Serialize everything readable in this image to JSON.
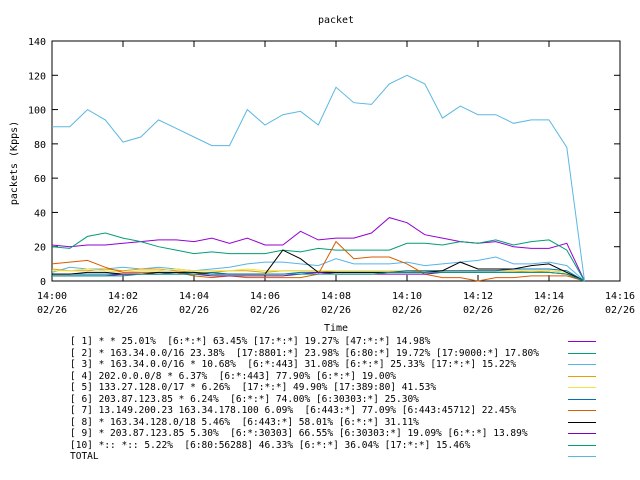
{
  "chart_data": {
    "type": "line",
    "title": "packet",
    "xlabel": "Time",
    "ylabel": "packets (Kpps)",
    "ylim": [
      0,
      140
    ],
    "yticks": [
      "0",
      "20",
      "40",
      "60",
      "80",
      "100",
      "120",
      "140"
    ],
    "xlim": [
      "14:00",
      "14:16"
    ],
    "xticks": [
      {
        "time": "14:00",
        "date": "02/26"
      },
      {
        "time": "14:02",
        "date": "02/26"
      },
      {
        "time": "14:04",
        "date": "02/26"
      },
      {
        "time": "14:06",
        "date": "02/26"
      },
      {
        "time": "14:08",
        "date": "02/26"
      },
      {
        "time": "14:10",
        "date": "02/26"
      },
      {
        "time": "14:12",
        "date": "02/26"
      },
      {
        "time": "14:14",
        "date": "02/26"
      },
      {
        "time": "14:16",
        "date": "02/26"
      }
    ],
    "x": [
      "14:00:00",
      "14:00:30",
      "14:01:00",
      "14:01:30",
      "14:02:00",
      "14:02:30",
      "14:03:00",
      "14:03:30",
      "14:04:00",
      "14:04:30",
      "14:05:00",
      "14:05:30",
      "14:06:00",
      "14:06:30",
      "14:07:00",
      "14:07:30",
      "14:08:00",
      "14:08:30",
      "14:09:00",
      "14:09:30",
      "14:10:00",
      "14:10:30",
      "14:11:00",
      "14:11:30",
      "14:12:00",
      "14:12:30",
      "14:13:00",
      "14:13:30",
      "14:14:00",
      "14:14:30",
      "14:15:00"
    ],
    "grid": false,
    "legend_position": "bottom",
    "series": [
      {
        "name": "[ 1] * * 25.01%  [6:*:*] 63.45% [17:*:*] 19.27% [47:*:*] 14.98%",
        "color": "#9400d3",
        "values": [
          21,
          20,
          21,
          21,
          22,
          23,
          24,
          24,
          23,
          25,
          22,
          25,
          21,
          21,
          29,
          24,
          25,
          25,
          28,
          37,
          34,
          27,
          25,
          23,
          22,
          23,
          20,
          19,
          19,
          22,
          0
        ]
      },
      {
        "name": "[ 2] * 163.34.0.0/16 23.38%  [17:8801:*] 23.98% [6:80:*] 19.72% [17:9000:*] 17.80%",
        "color": "#009e73",
        "values": [
          20,
          19,
          26,
          28,
          25,
          23,
          20,
          18,
          16,
          17,
          16,
          16,
          16,
          18,
          17,
          19,
          18,
          18,
          18,
          18,
          22,
          22,
          21,
          23,
          22,
          24,
          21,
          23,
          24,
          18,
          0
        ]
      },
      {
        "name": "[ 3] * 163.34.0.0/16 * 10.68%  [6:*:443] 31.08% [6:*:*] 25.33% [17:*:*] 15.22%",
        "color": "#56b4e9",
        "values": [
          5,
          8,
          7,
          7,
          8,
          7,
          8,
          7,
          6,
          7,
          8,
          10,
          11,
          11,
          10,
          9,
          13,
          10,
          10,
          10,
          11,
          9,
          10,
          11,
          12,
          14,
          10,
          10,
          11,
          9,
          0
        ]
      },
      {
        "name": "[ 4] 202.0.0.0/8 * 6.37%  [6:*:443] 77.90% [6:*:*] 19.00%",
        "color": "#e69f00",
        "values": [
          7,
          6,
          6,
          7,
          6,
          7,
          7,
          6,
          5,
          5,
          6,
          6,
          5,
          6,
          6,
          6,
          5,
          5,
          5,
          5,
          6,
          5,
          6,
          6,
          6,
          6,
          6,
          5,
          6,
          5,
          0
        ]
      },
      {
        "name": "[ 5] 133.27.128.0/17 * 6.26%  [17:*:*] 49.90% [17:389:80] 41.53%",
        "color": "#f0e442",
        "values": [
          6,
          6,
          7,
          6,
          5,
          6,
          6,
          7,
          6,
          6,
          6,
          7,
          6,
          6,
          6,
          6,
          6,
          6,
          6,
          6,
          6,
          6,
          6,
          6,
          6,
          6,
          6,
          6,
          6,
          5,
          0
        ]
      },
      {
        "name": "[ 6] 203.87.123.85 * 6.24%  [6:*:*] 74.00% [6:30303:*] 25.30%",
        "color": "#0072b2",
        "values": [
          4,
          4,
          4,
          4,
          4,
          4,
          4,
          5,
          4,
          5,
          4,
          4,
          4,
          4,
          5,
          5,
          5,
          5,
          5,
          5,
          6,
          6,
          6,
          6,
          6,
          6,
          7,
          7,
          7,
          6,
          0
        ]
      },
      {
        "name": "[ 7] 13.149.200.23 163.34.178.100 6.09%  [6:443:*] 77.09% [6:443:45712] 22.45%",
        "color": "#d55e00",
        "values": [
          10,
          11,
          12,
          8,
          5,
          5,
          5,
          5,
          3,
          2,
          3,
          2,
          2,
          2,
          2,
          4,
          23,
          13,
          14,
          14,
          10,
          4,
          2,
          2,
          0,
          2,
          2,
          3,
          3,
          3,
          0
        ]
      },
      {
        "name": "[ 8] * 163.34.128.0/18 5.46%  [6:443:*] 58.01% [6:*:*] 31.11%",
        "color": "#000000",
        "values": [
          4,
          4,
          5,
          5,
          4,
          4,
          5,
          5,
          5,
          4,
          4,
          4,
          4,
          18,
          13,
          5,
          5,
          5,
          5,
          5,
          5,
          5,
          6,
          11,
          7,
          7,
          7,
          9,
          10,
          5,
          0
        ]
      },
      {
        "name": "[ 9] * 203.87.123.85 5.30%  [6:*:30303] 66.55% [6:30303:*] 19.09% [6:*:*] 13.89%",
        "color": "#8000c0",
        "values": [
          3,
          3,
          3,
          3,
          4,
          4,
          4,
          4,
          4,
          3,
          3,
          3,
          3,
          3,
          4,
          5,
          4,
          4,
          4,
          4,
          4,
          4,
          5,
          5,
          5,
          5,
          5,
          5,
          5,
          4,
          0
        ]
      },
      {
        "name": "[10] *:: *:: 5.22%  [6:80:56288] 46.33% [6:*:*] 36.04% [17:*:*] 15.46%",
        "color": "#00a070",
        "values": [
          3,
          3,
          3,
          3,
          3,
          4,
          4,
          4,
          4,
          4,
          4,
          4,
          4,
          4,
          4,
          4,
          4,
          4,
          4,
          5,
          5,
          5,
          5,
          5,
          5,
          5,
          5,
          5,
          5,
          4,
          0
        ]
      },
      {
        "name": "TOTAL",
        "color": "#5ab8e0",
        "values": [
          90,
          90,
          100,
          94,
          81,
          84,
          94,
          89,
          84,
          79,
          79,
          100,
          91,
          97,
          99,
          91,
          113,
          104,
          103,
          115,
          120,
          115,
          95,
          102,
          97,
          97,
          92,
          94,
          94,
          78,
          0
        ]
      }
    ]
  }
}
